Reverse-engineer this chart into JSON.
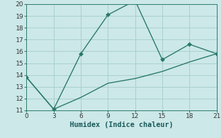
{
  "xlabel": "Humidex (Indice chaleur)",
  "line1_x": [
    0,
    3,
    6,
    9,
    12,
    15,
    18,
    21
  ],
  "line1_y": [
    13.8,
    11.1,
    15.8,
    19.1,
    20.3,
    15.3,
    16.6,
    15.8
  ],
  "line2_x": [
    0,
    3,
    6,
    9,
    12,
    15,
    18,
    21
  ],
  "line2_y": [
    13.8,
    11.1,
    12.1,
    13.3,
    13.7,
    14.3,
    15.1,
    15.8
  ],
  "line_color": "#2a7a6a",
  "bg_color": "#cce8e8",
  "grid_color": "#aacfcf",
  "xlim": [
    0,
    21
  ],
  "ylim": [
    11,
    20
  ],
  "xticks": [
    0,
    3,
    6,
    9,
    12,
    15,
    18,
    21
  ],
  "yticks": [
    11,
    12,
    13,
    14,
    15,
    16,
    17,
    18,
    19,
    20
  ],
  "marker": "D",
  "markersize": 3.0,
  "linewidth": 1.0,
  "label_fontsize": 7.5,
  "tick_fontsize": 6.5
}
